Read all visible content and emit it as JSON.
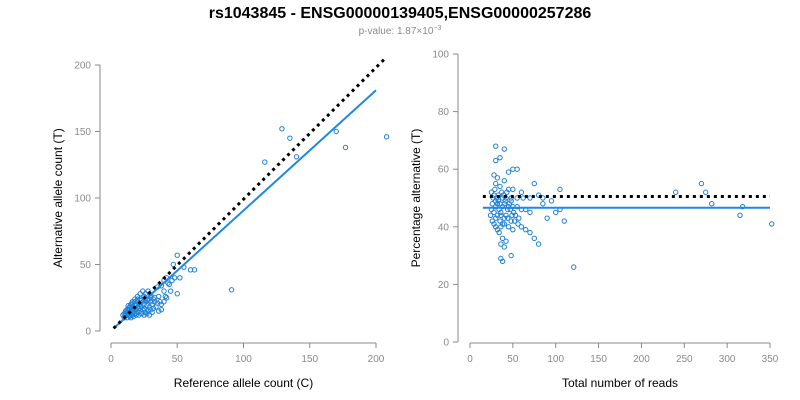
{
  "header": {
    "title": "rs1043845 - ENSG00000139405,ENSG00000257286",
    "pvalue_prefix": "p-value: 1.87×10",
    "pvalue_exponent": "−3"
  },
  "colors": {
    "points": "#1e7fd6",
    "fit_line": "#1e88e5",
    "reference_line": "#000000",
    "axis": "#8a8a8a"
  },
  "chart_data": [
    {
      "type": "scatter",
      "xlabel": "Reference allele count (C)",
      "ylabel": "Alternative allele count (T)",
      "xlim": [
        0,
        200
      ],
      "ylim": [
        0,
        200
      ],
      "xticks": [
        0,
        50,
        100,
        150,
        200
      ],
      "yticks": [
        0,
        50,
        100,
        150,
        200
      ],
      "grid": false,
      "fit_line": {
        "x": [
          2,
          200
        ],
        "y": [
          2,
          181
        ]
      },
      "reference_line": {
        "x": [
          2,
          208
        ],
        "y": [
          2,
          206
        ]
      },
      "points": [
        [
          129,
          152
        ],
        [
          135,
          145
        ],
        [
          140,
          131
        ],
        [
          170,
          150
        ],
        [
          177,
          138
        ],
        [
          208,
          146
        ],
        [
          116,
          127
        ],
        [
          91,
          31
        ],
        [
          50,
          57
        ],
        [
          47,
          50
        ],
        [
          55,
          48
        ],
        [
          60,
          46
        ],
        [
          63,
          46
        ],
        [
          48,
          40
        ],
        [
          42,
          40
        ],
        [
          40,
          38
        ],
        [
          43,
          36
        ],
        [
          38,
          34
        ],
        [
          35,
          33
        ],
        [
          52,
          40
        ],
        [
          45,
          30
        ],
        [
          50,
          28
        ],
        [
          40,
          22
        ],
        [
          42,
          25
        ],
        [
          38,
          20
        ],
        [
          33,
          25
        ],
        [
          30,
          27
        ],
        [
          28,
          23
        ],
        [
          25,
          26
        ],
        [
          22,
          24
        ],
        [
          20,
          24
        ],
        [
          18,
          22
        ],
        [
          16,
          21
        ],
        [
          15,
          20
        ],
        [
          14,
          18
        ],
        [
          13,
          16
        ],
        [
          12,
          14
        ],
        [
          11,
          12
        ],
        [
          10,
          13
        ],
        [
          9,
          12
        ],
        [
          10,
          10
        ],
        [
          12,
          10
        ],
        [
          14,
          11
        ],
        [
          16,
          12
        ],
        [
          18,
          13
        ],
        [
          20,
          14
        ],
        [
          22,
          15
        ],
        [
          24,
          16
        ],
        [
          26,
          14
        ],
        [
          28,
          15
        ],
        [
          30,
          16
        ],
        [
          32,
          17
        ],
        [
          34,
          18
        ],
        [
          36,
          15
        ],
        [
          38,
          16
        ],
        [
          20,
          18
        ],
        [
          18,
          16
        ],
        [
          16,
          16
        ],
        [
          14,
          14
        ],
        [
          12,
          12
        ],
        [
          13,
          13
        ],
        [
          15,
          15
        ],
        [
          17,
          17
        ],
        [
          19,
          19
        ],
        [
          21,
          21
        ],
        [
          23,
          23
        ],
        [
          25,
          20
        ],
        [
          27,
          19
        ],
        [
          29,
          18
        ],
        [
          31,
          20
        ],
        [
          33,
          22
        ],
        [
          35,
          21
        ],
        [
          15,
          10
        ],
        [
          17,
          11
        ],
        [
          19,
          12
        ],
        [
          21,
          12
        ],
        [
          23,
          13
        ],
        [
          25,
          12
        ],
        [
          27,
          13
        ],
        [
          29,
          12
        ],
        [
          31,
          14
        ],
        [
          22,
          20
        ],
        [
          24,
          22
        ],
        [
          26,
          23
        ],
        [
          28,
          24
        ],
        [
          30,
          25
        ],
        [
          18,
          20
        ],
        [
          16,
          18
        ],
        [
          14,
          16
        ],
        [
          12,
          16
        ],
        [
          11,
          15
        ],
        [
          13,
          19
        ],
        [
          15,
          18
        ],
        [
          17,
          15
        ],
        [
          19,
          16
        ],
        [
          21,
          17
        ],
        [
          23,
          18
        ],
        [
          25,
          17
        ],
        [
          20,
          22
        ],
        [
          18,
          24
        ],
        [
          16,
          22
        ],
        [
          15,
          13
        ],
        [
          14,
          12
        ],
        [
          30,
          22
        ],
        [
          32,
          24
        ],
        [
          36,
          26
        ],
        [
          40,
          30
        ],
        [
          44,
          35
        ],
        [
          37,
          22
        ],
        [
          41,
          26
        ],
        [
          46,
          38
        ],
        [
          28,
          30
        ],
        [
          26,
          28
        ],
        [
          24,
          30
        ],
        [
          22,
          28
        ],
        [
          20,
          26
        ]
      ]
    },
    {
      "type": "scatter",
      "xlabel": "Total number of reads",
      "ylabel": "Percentage alternative (T)",
      "xlim": [
        0,
        350
      ],
      "ylim": [
        0,
        100
      ],
      "xticks": [
        0,
        50,
        100,
        150,
        200,
        250,
        300,
        350
      ],
      "yticks": [
        0,
        20,
        40,
        60,
        80,
        100
      ],
      "grid": false,
      "fit_line": {
        "x": [
          15,
          350
        ],
        "y": [
          46.6,
          46.6
        ]
      },
      "reference_line": {
        "x": [
          15,
          350
        ],
        "y": [
          50.5,
          50.5
        ]
      },
      "points": [
        [
          30,
          68
        ],
        [
          40,
          67
        ],
        [
          35,
          64
        ],
        [
          30,
          63
        ],
        [
          50,
          60
        ],
        [
          55,
          60
        ],
        [
          45,
          59
        ],
        [
          28,
          58
        ],
        [
          32,
          57
        ],
        [
          40,
          56
        ],
        [
          75,
          55
        ],
        [
          30,
          55
        ],
        [
          35,
          54
        ],
        [
          45,
          53
        ],
        [
          50,
          53
        ],
        [
          60,
          52
        ],
        [
          25,
          52
        ],
        [
          28,
          51
        ],
        [
          33,
          51
        ],
        [
          38,
          50
        ],
        [
          42,
          50
        ],
        [
          48,
          50
        ],
        [
          55,
          50
        ],
        [
          62,
          50
        ],
        [
          70,
          50
        ],
        [
          80,
          51
        ],
        [
          85,
          50
        ],
        [
          30,
          49
        ],
        [
          35,
          48
        ],
        [
          40,
          48
        ],
        [
          45,
          47
        ],
        [
          50,
          47
        ],
        [
          55,
          47
        ],
        [
          60,
          46
        ],
        [
          65,
          46
        ],
        [
          70,
          45
        ],
        [
          25,
          46
        ],
        [
          28,
          45
        ],
        [
          32,
          44
        ],
        [
          36,
          44
        ],
        [
          40,
          43
        ],
        [
          44,
          43
        ],
        [
          48,
          42
        ],
        [
          52,
          42
        ],
        [
          56,
          41
        ],
        [
          60,
          40
        ],
        [
          65,
          39
        ],
        [
          70,
          38
        ],
        [
          30,
          43
        ],
        [
          35,
          42
        ],
        [
          40,
          41
        ],
        [
          45,
          40
        ],
        [
          50,
          39
        ],
        [
          38,
          36
        ],
        [
          42,
          35
        ],
        [
          36,
          34
        ],
        [
          40,
          33
        ],
        [
          48,
          30
        ],
        [
          36,
          29
        ],
        [
          38,
          28
        ],
        [
          80,
          34
        ],
        [
          75,
          36
        ],
        [
          90,
          43
        ],
        [
          100,
          45
        ],
        [
          105,
          46
        ],
        [
          110,
          42
        ],
        [
          105,
          53
        ],
        [
          95,
          49
        ],
        [
          85,
          48
        ],
        [
          121,
          26
        ],
        [
          240,
          52
        ],
        [
          270,
          55
        ],
        [
          275,
          52
        ],
        [
          282,
          48
        ],
        [
          315,
          44
        ],
        [
          318,
          47
        ],
        [
          352,
          41
        ],
        [
          30,
          47
        ],
        [
          32,
          48
        ],
        [
          34,
          46
        ],
        [
          36,
          45
        ],
        [
          38,
          47
        ],
        [
          26,
          48
        ],
        [
          27,
          50
        ],
        [
          29,
          53
        ],
        [
          31,
          50
        ],
        [
          33,
          49
        ],
        [
          37,
          52
        ],
        [
          39,
          51
        ],
        [
          41,
          49
        ],
        [
          43,
          52
        ],
        [
          47,
          46
        ],
        [
          49,
          44
        ],
        [
          51,
          45
        ],
        [
          53,
          44
        ],
        [
          57,
          43
        ],
        [
          24,
          44
        ],
        [
          26,
          42
        ],
        [
          28,
          41
        ],
        [
          30,
          40
        ],
        [
          32,
          39
        ],
        [
          34,
          38
        ],
        [
          36,
          40
        ],
        [
          38,
          41
        ],
        [
          42,
          44
        ],
        [
          44,
          46
        ],
        [
          46,
          48
        ],
        [
          48,
          49
        ]
      ]
    }
  ]
}
